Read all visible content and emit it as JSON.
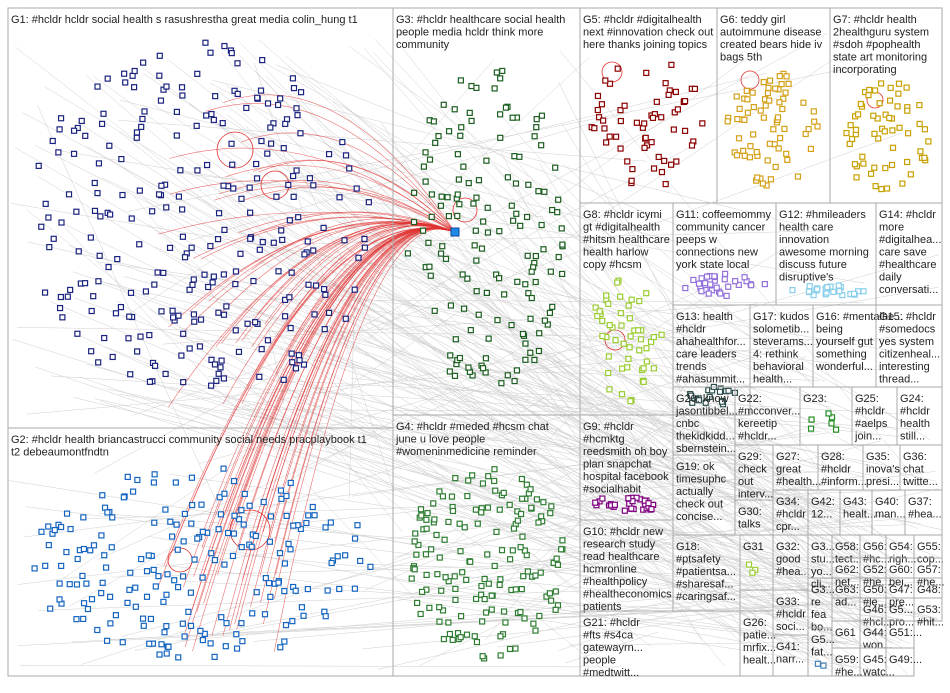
{
  "groups": [
    {
      "label": [
        "G1: #hcldr hcldr social health s rasushrestha great media colin_hung t1"
      ]
    },
    {
      "label": [
        "G2: #hcldr health briancastrucci community social needs pracplaybook t1",
        "t2 debeaumontfndtn"
      ]
    },
    {
      "label": [
        "G3: #hcldr healthcare social health",
        "people media hcldr think more",
        "community"
      ]
    },
    {
      "label": [
        "G4: #hcldr #meded #hcsm chat",
        "june u love people",
        "#womeninmedicine reminder"
      ]
    },
    {
      "label": [
        "G5: #hcldr #digitalhealth",
        "next #innovation check out",
        "here thanks joining topics"
      ]
    },
    {
      "label": [
        "G6: teddy girl",
        "autoimmune disease",
        "created bears hide iv",
        "bags 5th"
      ]
    },
    {
      "label": [
        "G7: #hcldr health",
        "2healthguru system",
        "#sdoh #pophealth",
        "state art monitoring",
        "incorporating"
      ]
    },
    {
      "label": [
        "G8: #hcldr icymi",
        "gt #digitalhealth",
        "#hitsm healthcare",
        "health harlow",
        "copy #hcsm"
      ]
    },
    {
      "label": [
        "G11: coffeemommy",
        "community cancer",
        "peeps w",
        "connections new",
        "york state local"
      ]
    },
    {
      "label": [
        "G12: #hmileaders",
        "health care",
        "innovation",
        "awesome morning",
        "discuss future",
        "disruptive's"
      ]
    },
    {
      "label": [
        "G14: #hcldr",
        "more",
        "#digitalhea...",
        "care save",
        "#healthcare",
        "daily",
        "conversati..."
      ]
    },
    {
      "label": [
        "G13: health",
        "#hcldr",
        "ahahealthfor...",
        "care leaders",
        "trends",
        "#ahasummit..."
      ]
    },
    {
      "label": [
        "G17: kudos",
        "solometib...",
        "steverams...",
        "4: rethink",
        "behavioral",
        "health..."
      ]
    },
    {
      "label": [
        "G16: #mentalhe...",
        "being",
        "yourself gut",
        "something",
        "wonderful..."
      ]
    },
    {
      "label": [
        "G15: #hcldr",
        "#somedocs",
        "yes system",
        "citizenheal...",
        "interesting",
        "thread..."
      ]
    },
    {
      "label": [
        "G9: #hcldr",
        "#hcmktg",
        "reedsmith oh boy",
        "plan snapchat",
        "hospital facebook",
        "#socialhabit"
      ]
    },
    {
      "label": [
        "G20: know",
        "jasontibbel...",
        "cnbc",
        "thekidkidd...",
        "sbernstein..."
      ]
    },
    {
      "label": [
        "G22:",
        "#mcconver...",
        "kereetip",
        "#hcldr..."
      ]
    },
    {
      "label": [
        "G23:"
      ]
    },
    {
      "label": [
        "G25:",
        "#hcldr",
        "#aelps",
        "join..."
      ]
    },
    {
      "label": [
        "G24:",
        "#hcldr",
        "health",
        "still..."
      ]
    },
    {
      "label": [
        "G19: ok",
        "timesuphc",
        "actually",
        "check out",
        "concise..."
      ]
    },
    {
      "label": [
        "G29:",
        "check",
        "out",
        "interv..."
      ]
    },
    {
      "label": [
        "G27:",
        "great",
        "#health..."
      ]
    },
    {
      "label": [
        "G28:",
        "#hcldr",
        "#inform..."
      ]
    },
    {
      "label": [
        "G35:",
        "inova's",
        "presi..."
      ]
    },
    {
      "label": [
        "G36:",
        "chat",
        "twitte..."
      ]
    },
    {
      "label": [
        "G34:",
        "#hcldr",
        "cpr..."
      ]
    },
    {
      "label": [
        "G42:",
        "12..."
      ]
    },
    {
      "label": [
        "G43:",
        "healt..."
      ]
    },
    {
      "label": [
        "G40:",
        "man..."
      ]
    },
    {
      "label": [
        "G37:",
        "#hea..."
      ]
    },
    {
      "label": [
        "G30:",
        "talks"
      ]
    },
    {
      "label": [
        "G10: #hcldr new",
        "research study",
        "read healthcare",
        "hcmronline",
        "#healthpolicy",
        "#healtheconomics",
        "patients"
      ]
    },
    {
      "label": [
        "G18:",
        "#ptsafety",
        "#patientsa...",
        "#sharesaf...",
        "#caringsaf..."
      ]
    },
    {
      "label": [
        "G31"
      ]
    },
    {
      "label": [
        "G32:",
        "good",
        "#hea..."
      ]
    },
    {
      "label": [
        "G3...",
        "stu...",
        "yo...",
        "cli..."
      ]
    },
    {
      "label": [
        "G58:",
        "tect..."
      ]
    },
    {
      "label": [
        "G56:",
        "#hc..."
      ]
    },
    {
      "label": [
        "G54:",
        "righ..."
      ]
    },
    {
      "label": [
        "G55:",
        "cop..."
      ]
    },
    {
      "label": [
        "G62:",
        "net..."
      ]
    },
    {
      "label": [
        "G52:",
        "#he..."
      ]
    },
    {
      "label": [
        "G60:",
        "bei..."
      ]
    },
    {
      "label": [
        "G57:",
        "#he..."
      ]
    },
    {
      "label": [
        "G63:",
        "ad..."
      ]
    },
    {
      "label": [
        "G50:",
        "#le..."
      ]
    },
    {
      "label": [
        "G47:",
        "pre..."
      ]
    },
    {
      "label": [
        "G48:"
      ]
    },
    {
      "label": [
        "G33:",
        "#hcldr",
        "soci..."
      ]
    },
    {
      "label": [
        "G3...",
        "re",
        "fea",
        "bo..."
      ]
    },
    {
      "label": [
        "G46:",
        "#hcl..."
      ]
    },
    {
      "label": [
        "G5...",
        "pro..."
      ]
    },
    {
      "label": [
        "G53:",
        "#hit..."
      ]
    },
    {
      "label": [
        "G21: #hcldr",
        "#fts #s4ca",
        "gatewayrn...",
        "people",
        "#medtwitt..."
      ]
    },
    {
      "label": [
        "G26:",
        "patie...",
        "mrfix...",
        "healt..."
      ]
    },
    {
      "label": [
        "G41:",
        "narr..."
      ]
    },
    {
      "label": [
        "G5...",
        "fat..."
      ]
    },
    {
      "label": [
        "G61"
      ]
    },
    {
      "label": [
        "G44:",
        "won..."
      ]
    },
    {
      "label": [
        "G51:..."
      ]
    },
    {
      "label": [
        "G59:",
        "#he..."
      ]
    },
    {
      "label": [
        "G45:",
        "watc..."
      ]
    },
    {
      "label": [
        "G49:..."
      ]
    }
  ]
}
